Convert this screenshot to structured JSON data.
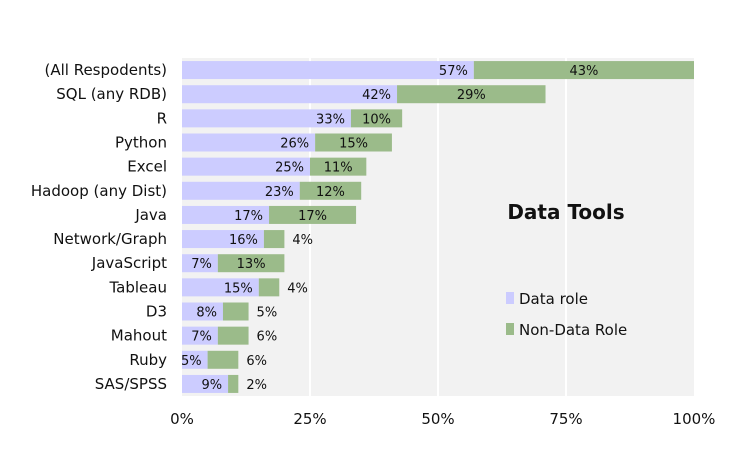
{
  "chart_data": {
    "type": "bar",
    "orientation": "horizontal",
    "stacked": true,
    "title": "Data Tools",
    "categories": [
      "(All Respodents)",
      "SQL (any RDB)",
      "R",
      "Python",
      "Excel",
      "Hadoop (any Dist)",
      "Java",
      "Network/Graph",
      "JavaScript",
      "Tableau",
      "D3",
      "Mahout",
      "Ruby",
      "SAS/SPSS"
    ],
    "series": [
      {
        "name": "Data role",
        "color": "#ccccff",
        "values": [
          57,
          42,
          33,
          26,
          25,
          23,
          17,
          16,
          7,
          15,
          8,
          7,
          5,
          9
        ]
      },
      {
        "name": "Non-Data Role",
        "color": "#9bbb8a",
        "values": [
          43,
          29,
          10,
          15,
          11,
          12,
          17,
          4,
          13,
          4,
          5,
          6,
          6,
          2
        ]
      }
    ],
    "value_labels": [
      [
        "57%",
        "43%"
      ],
      [
        "42%",
        "29%"
      ],
      [
        "33%",
        "10%"
      ],
      [
        "26%",
        "15%"
      ],
      [
        "25%",
        "11%"
      ],
      [
        "23%",
        "12%"
      ],
      [
        "17%",
        "17%"
      ],
      [
        "16%",
        "4%"
      ],
      [
        "7%",
        "13%"
      ],
      [
        "15%",
        "4%"
      ],
      [
        "8%",
        "5%"
      ],
      [
        "7%",
        "6%"
      ],
      [
        "5%",
        "6%"
      ],
      [
        "9%",
        "2%"
      ]
    ],
    "xlim": [
      0,
      100
    ],
    "xticks": [
      0,
      25,
      50,
      75,
      100
    ],
    "xtick_labels": [
      "0%",
      "25%",
      "50%",
      "75%",
      "100%"
    ],
    "grid": true,
    "plot_background": "#f2f2f2",
    "legend_position": "right"
  }
}
